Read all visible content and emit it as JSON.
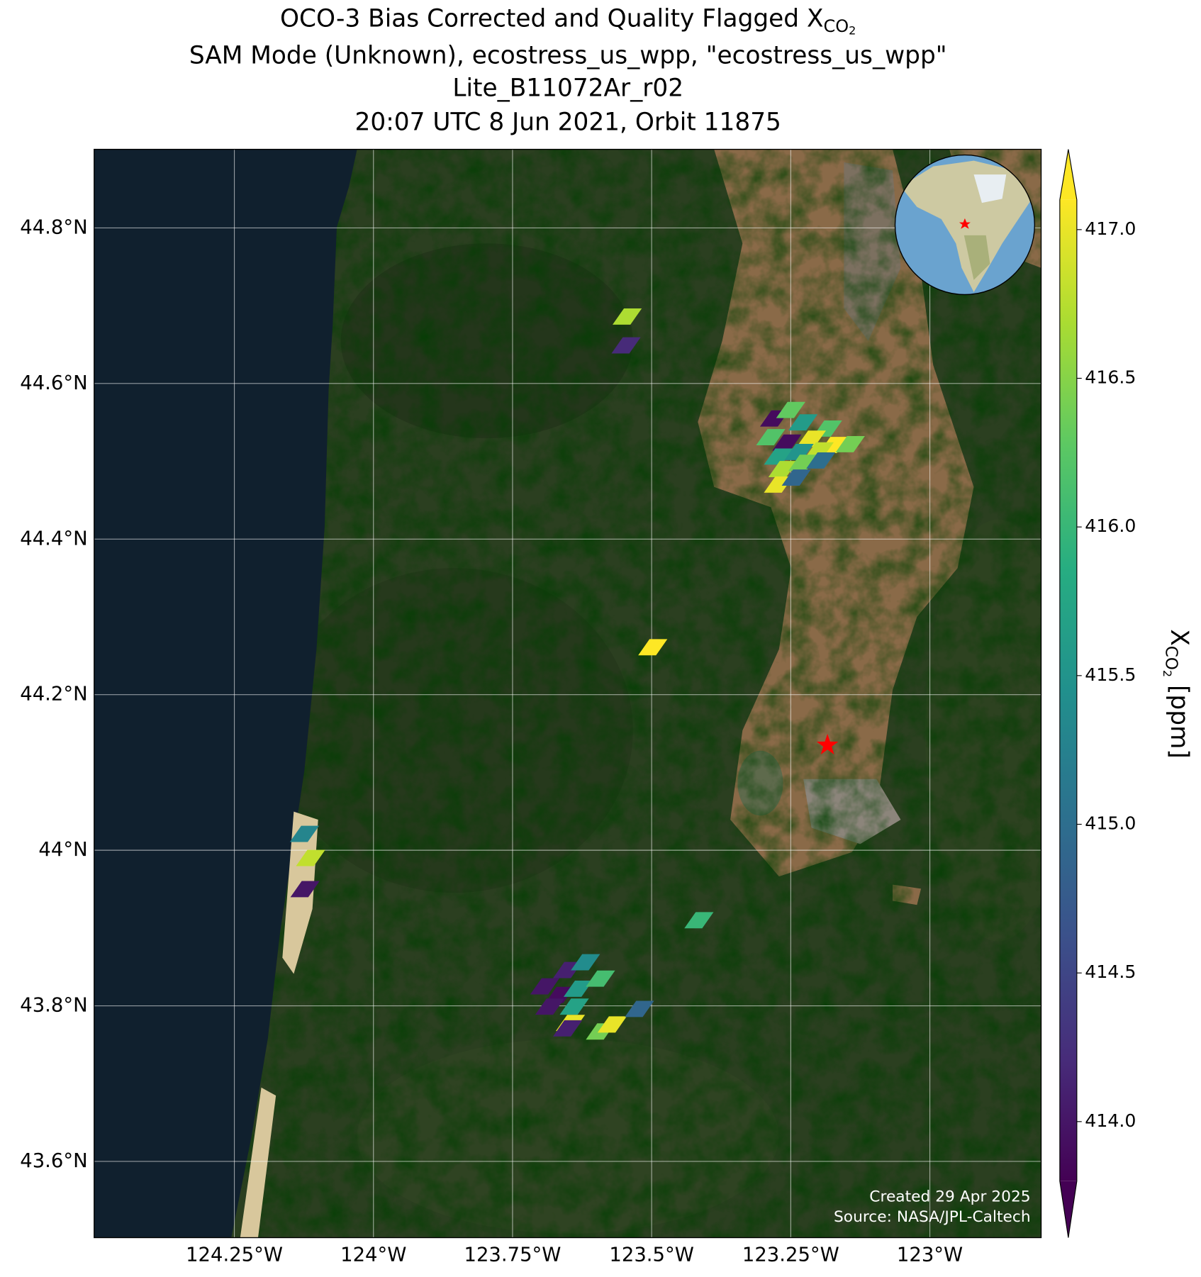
{
  "chart_data": {
    "type": "map",
    "title": "OCO-3 Bias Corrected and Quality Flagged X",
    "title_subscript": "CO",
    "title_subscript_index": "2",
    "subtitle_lines": [
      "SAM Mode (Unknown), ecostress_us_wpp, \"ecostress_us_wpp\"",
      "Lite_B11072Ar_r02",
      "20:07 UTC 8 Jun 2021, Orbit 11875"
    ],
    "xlim": [
      -124.502,
      -122.8
    ],
    "ylim": [
      43.502,
      44.901
    ],
    "xticks": [
      {
        "value": -124.25,
        "label": "124.25°W"
      },
      {
        "value": -124,
        "label": "124°W"
      },
      {
        "value": -123.75,
        "label": "123.75°W"
      },
      {
        "value": -123.5,
        "label": "123.5°W"
      },
      {
        "value": -123.25,
        "label": "123.25°W"
      },
      {
        "value": -123,
        "label": "123°W"
      }
    ],
    "yticks": [
      {
        "value": 43.6,
        "label": "43.6°N"
      },
      {
        "value": 43.8,
        "label": "43.8°N"
      },
      {
        "value": 44,
        "label": "44°N"
      },
      {
        "value": 44.2,
        "label": "44.2°N"
      },
      {
        "value": 44.4,
        "label": "44.4°N"
      },
      {
        "value": 44.6,
        "label": "44.6°N"
      },
      {
        "value": 44.8,
        "label": "44.8°N"
      }
    ],
    "grid": true,
    "x": [
      -123.544,
      -123.546,
      -123.279,
      -123.25,
      -123.228,
      -123.184,
      -123.286,
      -123.257,
      -123.213,
      -123.173,
      -123.143,
      -123.272,
      -123.235,
      -123.199,
      -123.264,
      -123.228,
      -123.196,
      -123.272,
      -123.24,
      -123.498,
      -124.124,
      -124.113,
      -124.123,
      -123.415,
      -123.692,
      -123.651,
      -123.619,
      -123.665,
      -123.632,
      -123.592,
      -123.683,
      -123.639,
      -123.646,
      -123.651,
      -123.592,
      -123.571,
      -123.522
    ],
    "y": [
      44.686,
      44.649,
      44.555,
      44.566,
      44.55,
      44.542,
      44.531,
      44.524,
      44.529,
      44.521,
      44.522,
      44.506,
      44.512,
      44.514,
      44.49,
      44.498,
      44.501,
      44.47,
      44.479,
      44.261,
      44.021,
      43.99,
      43.95,
      43.91,
      43.825,
      43.846,
      43.856,
      43.814,
      43.822,
      43.835,
      43.799,
      43.799,
      43.778,
      43.771,
      43.767,
      43.776,
      43.796
    ],
    "values": [
      416.7,
      414.2,
      413.9,
      416.3,
      415.6,
      416.2,
      416.2,
      413.9,
      417.0,
      417.1,
      416.4,
      415.7,
      415.5,
      416.8,
      416.7,
      416.4,
      415.0,
      417.0,
      414.9,
      417.1,
      415.3,
      416.8,
      414.0,
      416.0,
      414.0,
      414.1,
      415.4,
      413.9,
      415.6,
      416.1,
      414.0,
      415.7,
      417.0,
      414.1,
      416.4,
      417.0,
      414.9
    ],
    "target": {
      "x": -123.184,
      "y": 44.135,
      "color": "#ff0000"
    },
    "colorbar": {
      "label": "X",
      "label_subscript": "CO",
      "label_subscript_index": "2",
      "label_unit": " [ppm]",
      "colormap": "viridis",
      "extend": "both",
      "clim": [
        413.8,
        417.1
      ],
      "ticks": [
        {
          "value": 414,
          "label": "414.0"
        },
        414.5,
        {
          "value": 415,
          "label": "415.0"
        },
        415.5,
        {
          "value": 416,
          "label": "416.0"
        },
        416.5,
        {
          "value": 417,
          "label": "417.0"
        }
      ]
    },
    "credits": [
      "Created 29 Apr 2025",
      "Source: NASA/JPL-Caltech"
    ]
  }
}
